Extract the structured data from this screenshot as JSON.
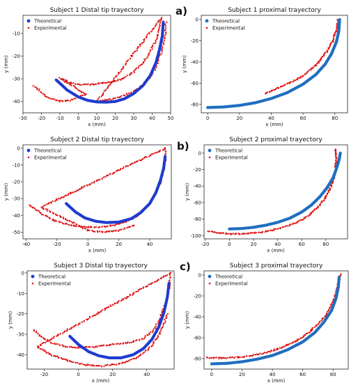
{
  "chart_data": [
    {
      "type": "scatter",
      "title": "Subject 1 Distal tip trayectory",
      "xlabel": "x (mm)",
      "ylabel": "y (mm)",
      "xlim": [
        -30,
        50
      ],
      "ylim": [
        -45,
        -2
      ],
      "xticks": [
        -30,
        -20,
        -10,
        0,
        10,
        20,
        30,
        40,
        50
      ],
      "yticks": [
        -40,
        -30,
        -20,
        -10
      ],
      "grid": false,
      "legend": "top-left",
      "series": [
        {
          "name": "Theoretical",
          "color": "#1f3ccf",
          "points": [
            [
              -12,
              -30.5
            ],
            [
              -6,
              -35
            ],
            [
              0,
              -38
            ],
            [
              5,
              -39.5
            ],
            [
              10,
              -40.2
            ],
            [
              15,
              -40.3
            ],
            [
              20,
              -40
            ],
            [
              25,
              -38.8
            ],
            [
              30,
              -36.5
            ],
            [
              35,
              -33
            ],
            [
              39,
              -28.5
            ],
            [
              42,
              -23
            ],
            [
              44,
              -17
            ],
            [
              45.5,
              -11
            ],
            [
              46,
              -5
            ]
          ]
        },
        {
          "name": "Experimental",
          "color": "#e01010",
          "points": [
            [
              -24,
              -33
            ],
            [
              -20,
              -36
            ],
            [
              -16,
              -38.5
            ],
            [
              -12,
              -39.5
            ],
            [
              -8,
              -40
            ],
            [
              -4,
              -39.5
            ],
            [
              0,
              -38
            ],
            [
              4,
              -37
            ],
            [
              -10,
              -29.5
            ],
            [
              -5,
              -31.5
            ],
            [
              0,
              -32.5
            ],
            [
              6,
              -32.5
            ],
            [
              12,
              -32
            ],
            [
              18,
              -31.5
            ],
            [
              24,
              -30
            ],
            [
              30,
              -27
            ],
            [
              35,
              -23
            ],
            [
              39,
              -18
            ],
            [
              42,
              -13
            ],
            [
              44,
              -8
            ],
            [
              45,
              -3
            ],
            [
              10,
              -40
            ],
            [
              18,
              -39
            ],
            [
              26,
              -37
            ],
            [
              33,
              -34
            ],
            [
              38,
              -30
            ],
            [
              42,
              -25
            ],
            [
              45,
              -18
            ],
            [
              47,
              -10
            ],
            [
              47.5,
              -5
            ]
          ]
        }
      ]
    },
    {
      "type": "scatter",
      "title": "Subject 1 proximal trayectory",
      "xlabel": "x (mm)",
      "ylabel": "y (mm)",
      "xlim": [
        -4,
        88
      ],
      "ylim": [
        -88,
        4
      ],
      "xticks": [
        0,
        20,
        40,
        60,
        80
      ],
      "yticks": [
        -80,
        -60,
        -40,
        -20,
        0
      ],
      "grid": false,
      "legend": "top-left",
      "series": [
        {
          "name": "Theoretical",
          "color": "#1f6fc0",
          "points": [
            [
              0,
              -83
            ],
            [
              10,
              -82.5
            ],
            [
              20,
              -81
            ],
            [
              30,
              -78.5
            ],
            [
              40,
              -74.5
            ],
            [
              50,
              -69
            ],
            [
              60,
              -61
            ],
            [
              68,
              -52
            ],
            [
              74,
              -42
            ],
            [
              78,
              -32
            ],
            [
              81,
              -21
            ],
            [
              82.5,
              -11
            ],
            [
              83,
              0
            ]
          ]
        },
        {
          "name": "Experimental",
          "color": "#e01010",
          "points": [
            [
              36,
              -70
            ],
            [
              42,
              -66
            ],
            [
              48,
              -62
            ],
            [
              54,
              -58
            ],
            [
              60,
              -53
            ],
            [
              66,
              -46
            ],
            [
              71,
              -38
            ],
            [
              75,
              -30
            ],
            [
              78,
              -22
            ],
            [
              80,
              -14
            ],
            [
              81.5,
              -7
            ],
            [
              82,
              0
            ]
          ]
        }
      ]
    },
    {
      "type": "scatter",
      "title": "Subject 2 Distal tip trayectory",
      "xlabel": "x (mm)",
      "ylabel": "y (mm)",
      "xlim": [
        -42,
        54
      ],
      "ylim": [
        -54,
        2
      ],
      "xticks": [
        -40,
        -20,
        0,
        20,
        40
      ],
      "yticks": [
        -50,
        -40,
        -30,
        -20,
        -10,
        0
      ],
      "grid": false,
      "legend": "top-left",
      "series": [
        {
          "name": "Theoretical",
          "color": "#1f3ccf",
          "points": [
            [
              -14,
              -33
            ],
            [
              -8,
              -38
            ],
            [
              -2,
              -41.5
            ],
            [
              5,
              -43.5
            ],
            [
              12,
              -44.3
            ],
            [
              20,
              -44
            ],
            [
              28,
              -42
            ],
            [
              34,
              -38.5
            ],
            [
              40,
              -33
            ],
            [
              44,
              -26.5
            ],
            [
              47,
              -19
            ],
            [
              49,
              -12
            ],
            [
              50,
              -5
            ]
          ]
        },
        {
          "name": "Experimental",
          "color": "#e01010",
          "points": [
            [
              -38,
              -34
            ],
            [
              -33,
              -37
            ],
            [
              -28,
              -40
            ],
            [
              -22,
              -43
            ],
            [
              -15,
              -45
            ],
            [
              -8,
              -46.5
            ],
            [
              0,
              -47
            ],
            [
              8,
              -47
            ],
            [
              16,
              -46
            ],
            [
              24,
              -44
            ],
            [
              31,
              -41
            ],
            [
              37,
              -36
            ],
            [
              42,
              -30
            ],
            [
              46,
              -23
            ],
            [
              48.5,
              -15
            ],
            [
              50,
              -7
            ],
            [
              50,
              0
            ],
            [
              -30,
              -35
            ],
            [
              -20,
              -40
            ],
            [
              -10,
              -44
            ],
            [
              0,
              -49
            ],
            [
              10,
              -50
            ],
            [
              20,
              -49
            ],
            [
              30,
              -46
            ]
          ]
        }
      ]
    },
    {
      "type": "scatter",
      "title": "Subject 2 proximal trayectory",
      "xlabel": "x (mm)",
      "ylabel": "y (mm)",
      "xlim": [
        -21,
        98
      ],
      "ylim": [
        -104,
        10
      ],
      "xticks": [
        -20,
        0,
        20,
        40,
        60,
        80
      ],
      "yticks": [
        -100,
        -80,
        -60,
        -40,
        -20,
        0
      ],
      "grid": false,
      "legend": "top-left",
      "series": [
        {
          "name": "Theoretical",
          "color": "#1f6fc0",
          "points": [
            [
              0,
              -92
            ],
            [
              10,
              -91.5
            ],
            [
              20,
              -90
            ],
            [
              30,
              -87.5
            ],
            [
              40,
              -84
            ],
            [
              50,
              -79
            ],
            [
              60,
              -71.5
            ],
            [
              68,
              -63
            ],
            [
              75,
              -53
            ],
            [
              81,
              -42
            ],
            [
              86,
              -30
            ],
            [
              89,
              -18
            ],
            [
              91,
              -8
            ],
            [
              92,
              0
            ]
          ]
        },
        {
          "name": "Experimental",
          "color": "#e01010",
          "points": [
            [
              -18,
              -95
            ],
            [
              -8,
              -97
            ],
            [
              0,
              -98
            ],
            [
              10,
              -98
            ],
            [
              20,
              -97
            ],
            [
              30,
              -95
            ],
            [
              40,
              -92
            ],
            [
              50,
              -87.5
            ],
            [
              60,
              -81
            ],
            [
              68,
              -73
            ],
            [
              75,
              -63
            ],
            [
              80,
              -53
            ],
            [
              84,
              -42
            ],
            [
              86.5,
              -31
            ],
            [
              88,
              -20
            ],
            [
              88.5,
              -10
            ],
            [
              88,
              5
            ]
          ]
        }
      ]
    },
    {
      "type": "scatter",
      "title": "Subject 3 Distal tip trayectory",
      "xlabel": "x (mm)",
      "ylabel": "y (mm)",
      "xlim": [
        -30,
        56
      ],
      "ylim": [
        -47,
        1
      ],
      "xticks": [
        -20,
        0,
        20,
        40
      ],
      "yticks": [
        -40,
        -30,
        -20,
        -10,
        0
      ],
      "grid": false,
      "legend": "top-left",
      "series": [
        {
          "name": "Theoretical",
          "color": "#1f3ccf",
          "points": [
            [
              -5,
              -31
            ],
            [
              0,
              -35
            ],
            [
              6,
              -38.5
            ],
            [
              12,
              -40.5
            ],
            [
              18,
              -41.5
            ],
            [
              25,
              -41.5
            ],
            [
              32,
              -40
            ],
            [
              38,
              -37
            ],
            [
              43,
              -32.5
            ],
            [
              47,
              -26.5
            ],
            [
              50,
              -19.5
            ],
            [
              52,
              -12
            ],
            [
              53,
              -5
            ]
          ]
        },
        {
          "name": "Experimental",
          "color": "#e01010",
          "points": [
            [
              -26,
              -28
            ],
            [
              -22,
              -31
            ],
            [
              -16,
              -34
            ],
            [
              -8,
              -36
            ],
            [
              0,
              -36.5
            ],
            [
              10,
              -36
            ],
            [
              20,
              -35
            ],
            [
              30,
              -34
            ],
            [
              38,
              -32
            ],
            [
              44,
              -28
            ],
            [
              48,
              -22
            ],
            [
              51,
              -15
            ],
            [
              53,
              -8
            ],
            [
              54,
              0
            ],
            [
              -24,
              -36
            ],
            [
              -16,
              -40
            ],
            [
              -6,
              -43
            ],
            [
              4,
              -45
            ],
            [
              14,
              -45.5
            ],
            [
              24,
              -44.5
            ],
            [
              34,
              -41.5
            ],
            [
              42,
              -36.5
            ],
            [
              48,
              -29
            ],
            [
              52,
              -20
            ]
          ]
        }
      ]
    },
    {
      "type": "scatter",
      "title": "Subject 3 proximal trayectory",
      "xlabel": "x (mm)",
      "ylabel": "y (mm)",
      "xlim": [
        -5,
        90
      ],
      "ylim": [
        -90,
        4
      ],
      "xticks": [
        0,
        20,
        40,
        60,
        80
      ],
      "yticks": [
        -80,
        -60,
        -40,
        -20,
        0
      ],
      "grid": false,
      "legend": "top-left",
      "series": [
        {
          "name": "Theoretical",
          "color": "#1f6fc0",
          "points": [
            [
              0,
              -85
            ],
            [
              10,
              -84.5
            ],
            [
              20,
              -83
            ],
            [
              30,
              -80.5
            ],
            [
              40,
              -77
            ],
            [
              50,
              -71.5
            ],
            [
              60,
              -64
            ],
            [
              68,
              -55
            ],
            [
              74,
              -45
            ],
            [
              79,
              -34
            ],
            [
              82,
              -22
            ],
            [
              83.5,
              -11
            ],
            [
              84,
              -2
            ]
          ]
        },
        {
          "name": "Experimental",
          "color": "#e01010",
          "points": [
            [
              -3,
              -79
            ],
            [
              5,
              -79.5
            ],
            [
              15,
              -79
            ],
            [
              25,
              -77.5
            ],
            [
              35,
              -74.5
            ],
            [
              45,
              -70
            ],
            [
              55,
              -63.5
            ],
            [
              63,
              -56
            ],
            [
              70,
              -47
            ],
            [
              76,
              -37
            ],
            [
              80,
              -26
            ],
            [
              82.5,
              -15
            ],
            [
              84,
              -5
            ],
            [
              85,
              1
            ]
          ]
        }
      ]
    }
  ],
  "panel_labels": [
    "a)",
    "b)",
    "c)"
  ]
}
